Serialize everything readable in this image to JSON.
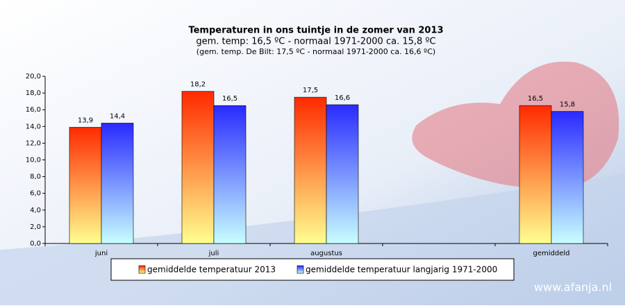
{
  "chart_data": {
    "type": "bar",
    "title": "Temperaturen  in ons tuintje  in de zomer  van 2013",
    "subtitle": "gem.  temp: 16,5 ºC - normaal  1971-2000  ca. 15,8 ºC",
    "note": "(gem. temp. De Bilt: 17,5 ºC - normaal 1971-2000 ca. 16,6 ºC)",
    "watermark": "www.afanja.nl",
    "categories": [
      "juni",
      "juli",
      "augustus",
      null,
      "gemiddeld"
    ],
    "series": [
      {
        "name": "gemiddelde temperatuur 2013",
        "color": "#ff2a00",
        "values": [
          13.9,
          18.2,
          17.5,
          null,
          16.5
        ],
        "value_labels": [
          "13,9",
          "18,2",
          "17,5",
          null,
          "16,5"
        ]
      },
      {
        "name": "gemiddelde temperatuur langjarig 1971-2000",
        "color": "#2a2aff",
        "values": [
          14.4,
          16.5,
          16.6,
          null,
          15.8
        ],
        "value_labels": [
          "14,4",
          "16,5",
          "16,6",
          null,
          "15,8"
        ]
      }
    ],
    "ylim": [
      0,
      20
    ],
    "yticks": [
      {
        "value": 0,
        "label": "0,0"
      },
      {
        "value": 2,
        "label": "2,0"
      },
      {
        "value": 4,
        "label": "4,0"
      },
      {
        "value": 6,
        "label": "6,0"
      },
      {
        "value": 8,
        "label": "8,0"
      },
      {
        "value": 10,
        "label": "10,0"
      },
      {
        "value": 12,
        "label": "12,0"
      },
      {
        "value": 14,
        "label": "14,0"
      },
      {
        "value": 16,
        "label": "16,0"
      },
      {
        "value": 18,
        "label": "18,0"
      },
      {
        "value": 20,
        "label": "20,0"
      }
    ],
    "grid": false
  }
}
